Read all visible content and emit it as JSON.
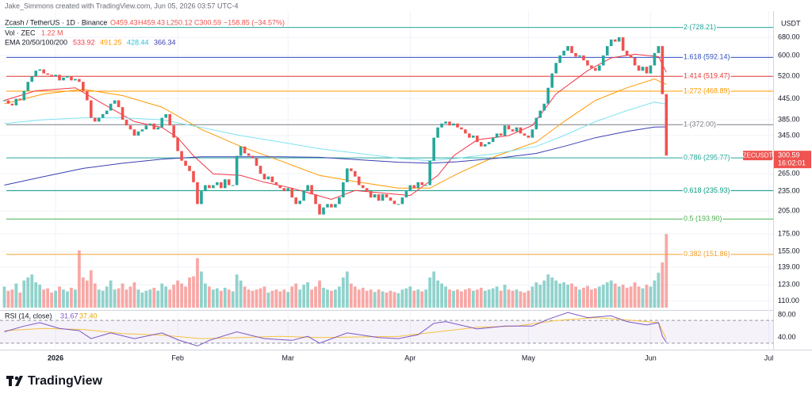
{
  "header": {
    "attribution": "Jake_Simmons created with TradingView.com, Jun 05, 2026 03:57 UTC-4",
    "symbol": "Zcash / TetherUS · 1D · Binance",
    "ohlc": [
      "O459.43",
      "H459.43",
      "L250.12",
      "C300.59",
      "−158.85 (−34.57%)"
    ],
    "vol_legend": "Vol · ZEC",
    "vol_value": "1.22 M",
    "ema_legend": "EMA 20/50/100/200",
    "axis_unit": "USDT",
    "symbol_tag": "ZECUSDT",
    "countdown": "16:02:01"
  },
  "footer": {
    "brand": "TradingView"
  },
  "chart_data": {
    "type": "candlestick",
    "up_color": "#26a69a",
    "down_color": "#ef5350",
    "log_scale": true,
    "x": [
      0,
      1,
      2,
      3,
      4,
      5,
      6,
      7,
      8,
      9,
      10,
      11,
      12,
      13,
      14,
      15,
      16,
      17,
      18,
      19,
      20,
      21,
      22,
      23,
      24,
      25,
      26,
      27,
      28,
      29,
      30,
      31,
      32,
      33,
      34,
      35,
      36,
      37,
      38,
      39,
      40,
      41,
      42,
      43,
      44,
      45,
      46,
      47,
      48,
      49,
      50,
      51,
      52,
      53,
      54,
      55,
      56,
      57,
      58,
      59,
      60,
      61,
      62,
      63,
      64,
      65,
      66,
      67,
      68,
      69,
      70,
      71,
      72,
      73,
      74,
      75,
      76,
      77,
      78,
      79,
      80,
      81,
      82,
      83,
      84,
      85,
      86,
      87,
      88,
      89,
      90,
      91,
      92,
      93,
      94,
      95,
      96,
      97,
      98,
      99,
      100,
      101,
      102,
      103,
      104,
      105,
      106,
      107,
      108,
      109,
      110,
      111,
      112,
      113,
      114,
      115,
      116,
      117,
      118,
      119,
      120,
      121,
      122,
      123,
      124,
      125,
      126,
      127,
      128,
      129,
      130,
      131,
      132,
      133,
      134,
      135,
      136,
      137,
      138,
      139,
      140,
      141,
      142,
      143,
      144,
      145,
      146,
      147,
      148,
      149,
      150,
      151,
      152,
      153,
      154,
      155,
      156,
      157,
      158,
      159,
      160,
      161,
      162,
      163,
      164,
      165,
      166,
      167,
      168
    ],
    "close": [
      440,
      430,
      425,
      445,
      440,
      470,
      500,
      520,
      540,
      545,
      530,
      525,
      520,
      525,
      505,
      515,
      520,
      505,
      510,
      500,
      470,
      440,
      390,
      380,
      390,
      400,
      410,
      430,
      440,
      420,
      385,
      370,
      360,
      345,
      355,
      360,
      370,
      375,
      360,
      365,
      390,
      400,
      370,
      340,
      310,
      290,
      280,
      270,
      250,
      215,
      235,
      245,
      240,
      245,
      250,
      240,
      255,
      245,
      245,
      300,
      320,
      305,
      300,
      295,
      280,
      265,
      255,
      260,
      250,
      245,
      240,
      235,
      240,
      225,
      215,
      220,
      235,
      245,
      230,
      215,
      200,
      210,
      215,
      210,
      215,
      225,
      250,
      275,
      270,
      260,
      245,
      240,
      235,
      225,
      230,
      220,
      230,
      225,
      220,
      215,
      215,
      225,
      235,
      245,
      240,
      250,
      245,
      245,
      290,
      340,
      365,
      375,
      380,
      370,
      375,
      365,
      360,
      350,
      340,
      345,
      330,
      320,
      325,
      330,
      340,
      350,
      345,
      370,
      360,
      355,
      365,
      350,
      345,
      340,
      360,
      390,
      410,
      430,
      480,
      530,
      570,
      600,
      620,
      640,
      610,
      595,
      600,
      580,
      560,
      550,
      540,
      560,
      600,
      640,
      670,
      660,
      680,
      620,
      600,
      590,
      560,
      540,
      555,
      530,
      560,
      610,
      640,
      459.43,
      300.59
    ],
    "volume": [
      0.35,
      0.28,
      0.3,
      0.4,
      0.25,
      0.45,
      0.5,
      0.55,
      0.42,
      0.38,
      0.3,
      0.32,
      0.25,
      0.28,
      0.35,
      0.3,
      0.27,
      0.33,
      0.3,
      0.95,
      0.5,
      0.45,
      0.62,
      0.4,
      0.3,
      0.28,
      0.35,
      0.45,
      0.3,
      0.32,
      0.4,
      0.3,
      0.35,
      0.42,
      0.3,
      0.25,
      0.28,
      0.3,
      0.33,
      0.28,
      0.4,
      0.35,
      0.3,
      0.38,
      0.45,
      0.4,
      0.35,
      0.5,
      0.52,
      0.82,
      0.6,
      0.4,
      0.35,
      0.3,
      0.32,
      0.28,
      0.33,
      0.3,
      0.27,
      0.55,
      0.45,
      0.35,
      0.3,
      0.28,
      0.3,
      0.32,
      0.35,
      0.25,
      0.28,
      0.3,
      0.27,
      0.3,
      0.26,
      0.35,
      0.4,
      0.3,
      0.38,
      0.42,
      0.3,
      0.35,
      0.45,
      0.33,
      0.3,
      0.28,
      0.3,
      0.35,
      0.5,
      0.6,
      0.4,
      0.35,
      0.3,
      0.33,
      0.28,
      0.3,
      0.26,
      0.3,
      0.27,
      0.25,
      0.28,
      0.26,
      0.24,
      0.3,
      0.32,
      0.35,
      0.28,
      0.3,
      0.27,
      0.3,
      0.5,
      0.6,
      0.45,
      0.4,
      0.35,
      0.3,
      0.28,
      0.3,
      0.27,
      0.3,
      0.32,
      0.28,
      0.3,
      0.33,
      0.28,
      0.3,
      0.32,
      0.35,
      0.28,
      0.38,
      0.3,
      0.28,
      0.3,
      0.27,
      0.25,
      0.28,
      0.35,
      0.42,
      0.38,
      0.45,
      0.55,
      0.5,
      0.45,
      0.4,
      0.42,
      0.38,
      0.4,
      0.35,
      0.3,
      0.33,
      0.36,
      0.3,
      0.32,
      0.35,
      0.38,
      0.42,
      0.45,
      0.4,
      0.35,
      0.38,
      0.33,
      0.35,
      0.42,
      0.35,
      0.32,
      0.38,
      0.35,
      0.45,
      0.58,
      0.75,
      1.22
    ],
    "volume_lim": [
      0,
      1.25
    ],
    "xlim": [
      -1.1,
      195.1
    ],
    "xticks": [
      {
        "value": 13,
        "label": "2026"
      },
      {
        "value": 44,
        "label": "Feb"
      },
      {
        "value": 72,
        "label": "Mar"
      },
      {
        "value": 103,
        "label": "Apr"
      },
      {
        "value": 133,
        "label": "May"
      },
      {
        "value": 164,
        "label": "Jun"
      },
      {
        "value": 194,
        "label": "Jul"
      }
    ],
    "ylim": [
      104,
      815
    ],
    "yticks": [
      {
        "value": 680,
        "label": "680.00"
      },
      {
        "value": 600,
        "label": "600.00"
      },
      {
        "value": 520,
        "label": "520.00"
      },
      {
        "value": 445,
        "label": "445.00"
      },
      {
        "value": 385,
        "label": "385.00"
      },
      {
        "value": 345,
        "label": "345.00"
      },
      {
        "value": 265,
        "label": "265.00"
      },
      {
        "value": 235,
        "label": "235.00"
      },
      {
        "value": 205,
        "label": "205.00"
      },
      {
        "value": 175,
        "label": "175.00"
      },
      {
        "value": 155,
        "label": "155.00"
      },
      {
        "value": 139,
        "label": "139.00"
      },
      {
        "value": 123,
        "label": "123.00"
      },
      {
        "value": 110,
        "label": "110.00"
      }
    ],
    "fib_levels": [
      {
        "value": 728.21,
        "label": "2 (728.21)",
        "color": "#26a69a"
      },
      {
        "value": 592.14,
        "label": "1.618 (592.14)",
        "color": "#2f4fbf"
      },
      {
        "value": 519.47,
        "label": "1.414 (519.47)",
        "color": "#e53935"
      },
      {
        "value": 468.89,
        "label": "1.272 (468.89)",
        "color": "#ff9800"
      },
      {
        "value": 372,
        "label": "1 (372.00)",
        "color": "#787b86"
      },
      {
        "value": 295.77,
        "label": "0.786 (295.77)",
        "color": "#26a69a"
      },
      {
        "value": 235.93,
        "label": "0.618 (235.93)",
        "color": "#089981"
      },
      {
        "value": 193.9,
        "label": "0.5 (193.90)",
        "color": "#4caf50"
      },
      {
        "value": 151.86,
        "label": "0.382 (151.86)",
        "color": "#f0a030"
      }
    ],
    "ema_series": [
      {
        "color": "#f23645",
        "x": [
          0,
          8,
          18,
          25,
          33,
          40,
          44,
          48,
          53,
          60,
          66,
          73,
          83,
          89,
          96,
          103,
          110,
          114,
          120,
          128,
          134,
          140,
          148,
          154,
          160,
          166,
          168
        ],
        "values": [
          440,
          470,
          480,
          430,
          380,
          365,
          340,
          300,
          265,
          262,
          250,
          240,
          222,
          236,
          232,
          228,
          262,
          300,
          335,
          345,
          370,
          460,
          540,
          590,
          605,
          595,
          533.92
        ]
      },
      {
        "color": "#ff9800",
        "x": [
          0,
          10,
          20,
          30,
          40,
          50,
          60,
          70,
          80,
          90,
          100,
          108,
          115,
          125,
          135,
          142,
          150,
          158,
          165,
          168
        ],
        "values": [
          430,
          460,
          475,
          455,
          420,
          360,
          320,
          290,
          262,
          250,
          240,
          240,
          265,
          300,
          330,
          380,
          440,
          480,
          510,
          491.25
        ]
      },
      {
        "color": "#7ee3f2",
        "x": [
          0,
          10,
          20,
          30,
          40,
          50,
          60,
          70,
          80,
          90,
          100,
          108,
          115,
          125,
          135,
          142,
          150,
          158,
          165,
          168
        ],
        "values": [
          375,
          385,
          390,
          390,
          385,
          365,
          345,
          330,
          315,
          305,
          295,
          290,
          295,
          305,
          320,
          345,
          380,
          410,
          435,
          428.44
        ]
      },
      {
        "color": "#3a3fb0",
        "x": [
          0,
          10,
          20,
          30,
          40,
          50,
          60,
          70,
          80,
          90,
          100,
          108,
          115,
          125,
          135,
          142,
          150,
          158,
          165,
          168
        ],
        "values": [
          245,
          260,
          275,
          285,
          293,
          298,
          298,
          298,
          297,
          292,
          287,
          285,
          288,
          295,
          305,
          320,
          340,
          355,
          366,
          366.34
        ]
      }
    ],
    "rsi": {
      "title": "RSI (14, close)",
      "legend_values": [
        "31.67",
        "37.40"
      ],
      "color": "#7e57c2",
      "ma_color": "#f5c242",
      "x": [
        0,
        5,
        9,
        14,
        19,
        22,
        27,
        33,
        40,
        44,
        49,
        52,
        59,
        66,
        73,
        77,
        80,
        87,
        95,
        100,
        105,
        109,
        112,
        120,
        127,
        134,
        138,
        143,
        148,
        154,
        158,
        163,
        166,
        167,
        168
      ],
      "values": [
        50,
        60,
        66,
        56,
        52,
        38,
        48,
        38,
        48,
        36,
        25,
        35,
        50,
        38,
        35,
        42,
        30,
        48,
        40,
        38,
        45,
        65,
        68,
        55,
        60,
        60,
        72,
        84,
        75,
        78,
        68,
        62,
        66,
        42,
        31.67
      ],
      "ma_x": [
        0,
        10,
        20,
        30,
        40,
        50,
        60,
        70,
        80,
        90,
        100,
        110,
        120,
        130,
        140,
        150,
        160,
        166,
        168
      ],
      "ma_values": [
        52,
        56,
        54,
        47,
        44,
        38,
        40,
        42,
        40,
        41,
        42,
        50,
        58,
        60,
        70,
        75,
        70,
        66,
        37.4
      ],
      "band": [
        30,
        70
      ],
      "ylim": [
        20,
        87
      ],
      "yticks": [
        {
          "value": 80,
          "label": "80.00"
        },
        {
          "value": 40,
          "label": "40.00"
        }
      ]
    }
  }
}
